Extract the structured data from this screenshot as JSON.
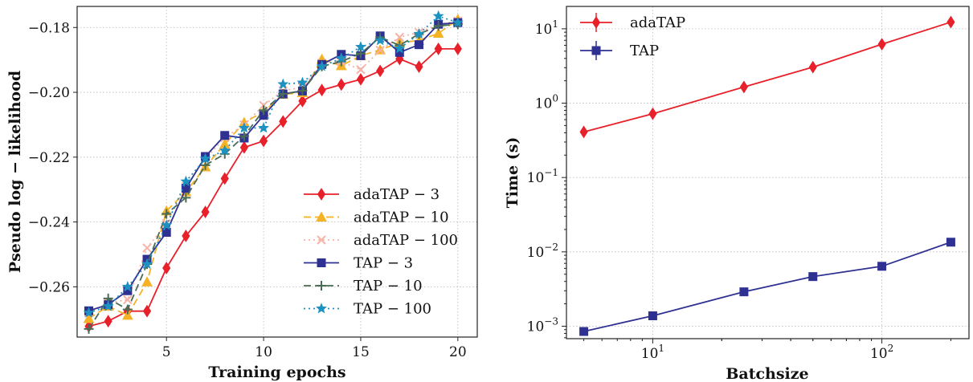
{
  "chart_data": [
    {
      "type": "line",
      "xlabel": "Training epochs",
      "ylabel": "Pseudo log − likelihood",
      "xlim": [
        0.4,
        21.0
      ],
      "ylim": [
        -0.2755,
        -0.1735
      ],
      "xticks": [
        5,
        10,
        15,
        20
      ],
      "yticks": [
        -0.26,
        -0.24,
        -0.22,
        -0.2,
        -0.18
      ],
      "xtick_labels": [
        "5",
        "10",
        "15",
        "20"
      ],
      "ytick_labels": [
        "−0.26",
        "−0.24",
        "−0.22",
        "−0.20",
        "−0.18"
      ],
      "grid": true,
      "legend_position": "lower-right",
      "x": [
        1,
        2,
        3,
        4,
        5,
        6,
        7,
        8,
        9,
        10,
        11,
        12,
        13,
        14,
        15,
        16,
        17,
        18,
        19,
        20
      ],
      "series": [
        {
          "name": "adaTAP − 3",
          "color": "#e8202a",
          "linestyle": "solid",
          "marker": "diamond",
          "values": [
            -0.2722,
            -0.2706,
            -0.2675,
            -0.2675,
            -0.2542,
            -0.2443,
            -0.2369,
            -0.2266,
            -0.217,
            -0.215,
            -0.209,
            -0.2027,
            -0.1993,
            -0.1976,
            -0.196,
            -0.1934,
            -0.1897,
            -0.1921,
            -0.1866,
            -0.1866
          ]
        },
        {
          "name": "adaTAP − 10",
          "color": "#f5b224",
          "linestyle": "dashed",
          "marker": "triangle",
          "values": [
            -0.2698,
            -0.266,
            -0.2688,
            -0.2585,
            -0.2366,
            -0.2307,
            -0.223,
            -0.216,
            -0.2093,
            -0.206,
            -0.2006,
            -0.2001,
            -0.1898,
            -0.1918,
            -0.1887,
            -0.1869,
            -0.1847,
            -0.184,
            -0.1818,
            -0.1775
          ]
        },
        {
          "name": "adaTAP − 100",
          "color": "#f7b2a6",
          "linestyle": "dotted",
          "marker": "x",
          "values": [
            -0.268,
            -0.265,
            -0.264,
            -0.248,
            -0.2405,
            -0.229,
            -0.2205,
            -0.214,
            -0.21,
            -0.204,
            -0.1995,
            -0.1985,
            -0.191,
            -0.1905,
            -0.193,
            -0.187,
            -0.183,
            -0.1815,
            -0.179,
            -0.178
          ]
        },
        {
          "name": "TAP − 3",
          "color": "#2e3192",
          "linestyle": "solid",
          "marker": "square",
          "values": [
            -0.2674,
            -0.2655,
            -0.2612,
            -0.2515,
            -0.2432,
            -0.2296,
            -0.2198,
            -0.2133,
            -0.2141,
            -0.2071,
            -0.2005,
            -0.1996,
            -0.1914,
            -0.1883,
            -0.1887,
            -0.1826,
            -0.1877,
            -0.1853,
            -0.179,
            -0.1785
          ]
        },
        {
          "name": "TAP − 10",
          "color": "#4a6b56",
          "linestyle": "dashed",
          "marker": "plus",
          "values": [
            -0.273,
            -0.2636,
            -0.267,
            -0.253,
            -0.2375,
            -0.2325,
            -0.2225,
            -0.219,
            -0.2135,
            -0.2055,
            -0.2005,
            -0.1995,
            -0.192,
            -0.1905,
            -0.188,
            -0.183,
            -0.1855,
            -0.182,
            -0.1795,
            -0.179
          ]
        },
        {
          "name": "TAP − 100",
          "color": "#1d91c0",
          "linestyle": "dotted",
          "marker": "star",
          "values": [
            -0.268,
            -0.266,
            -0.26,
            -0.253,
            -0.241,
            -0.2275,
            -0.2205,
            -0.218,
            -0.211,
            -0.211,
            -0.1975,
            -0.197,
            -0.192,
            -0.1895,
            -0.186,
            -0.184,
            -0.1865,
            -0.182,
            -0.1765,
            -0.1785
          ]
        }
      ]
    },
    {
      "type": "line",
      "xlabel": "Batchsize",
      "ylabel": "Time (s)",
      "xscale": "log",
      "yscale": "log",
      "xlim": [
        4.2,
        240
      ],
      "ylim": [
        0.00068,
        20
      ],
      "xticks": [
        10,
        100
      ],
      "yticks": [
        0.001,
        0.01,
        0.1,
        1,
        10
      ],
      "xtick_labels": [
        {
          "base": "10",
          "exp": "1"
        },
        {
          "base": "10",
          "exp": "2"
        }
      ],
      "ytick_labels": [
        {
          "base": "10",
          "exp": "−3"
        },
        {
          "base": "10",
          "exp": "−2"
        },
        {
          "base": "10",
          "exp": "−1"
        },
        {
          "base": "10",
          "exp": "0"
        },
        {
          "base": "10",
          "exp": "1"
        }
      ],
      "grid": true,
      "legend_position": "top-left",
      "x": [
        5,
        10,
        25,
        50,
        100,
        200
      ],
      "series": [
        {
          "name": "adaTAP",
          "color": "#e8202a",
          "marker": "diamond",
          "values": [
            0.41,
            0.72,
            1.65,
            3.05,
            6.2,
            12.3
          ]
        },
        {
          "name": "TAP",
          "color": "#2e3192",
          "marker": "square",
          "values": [
            0.00085,
            0.00138,
            0.0029,
            0.00465,
            0.0064,
            0.0135
          ]
        }
      ]
    }
  ]
}
